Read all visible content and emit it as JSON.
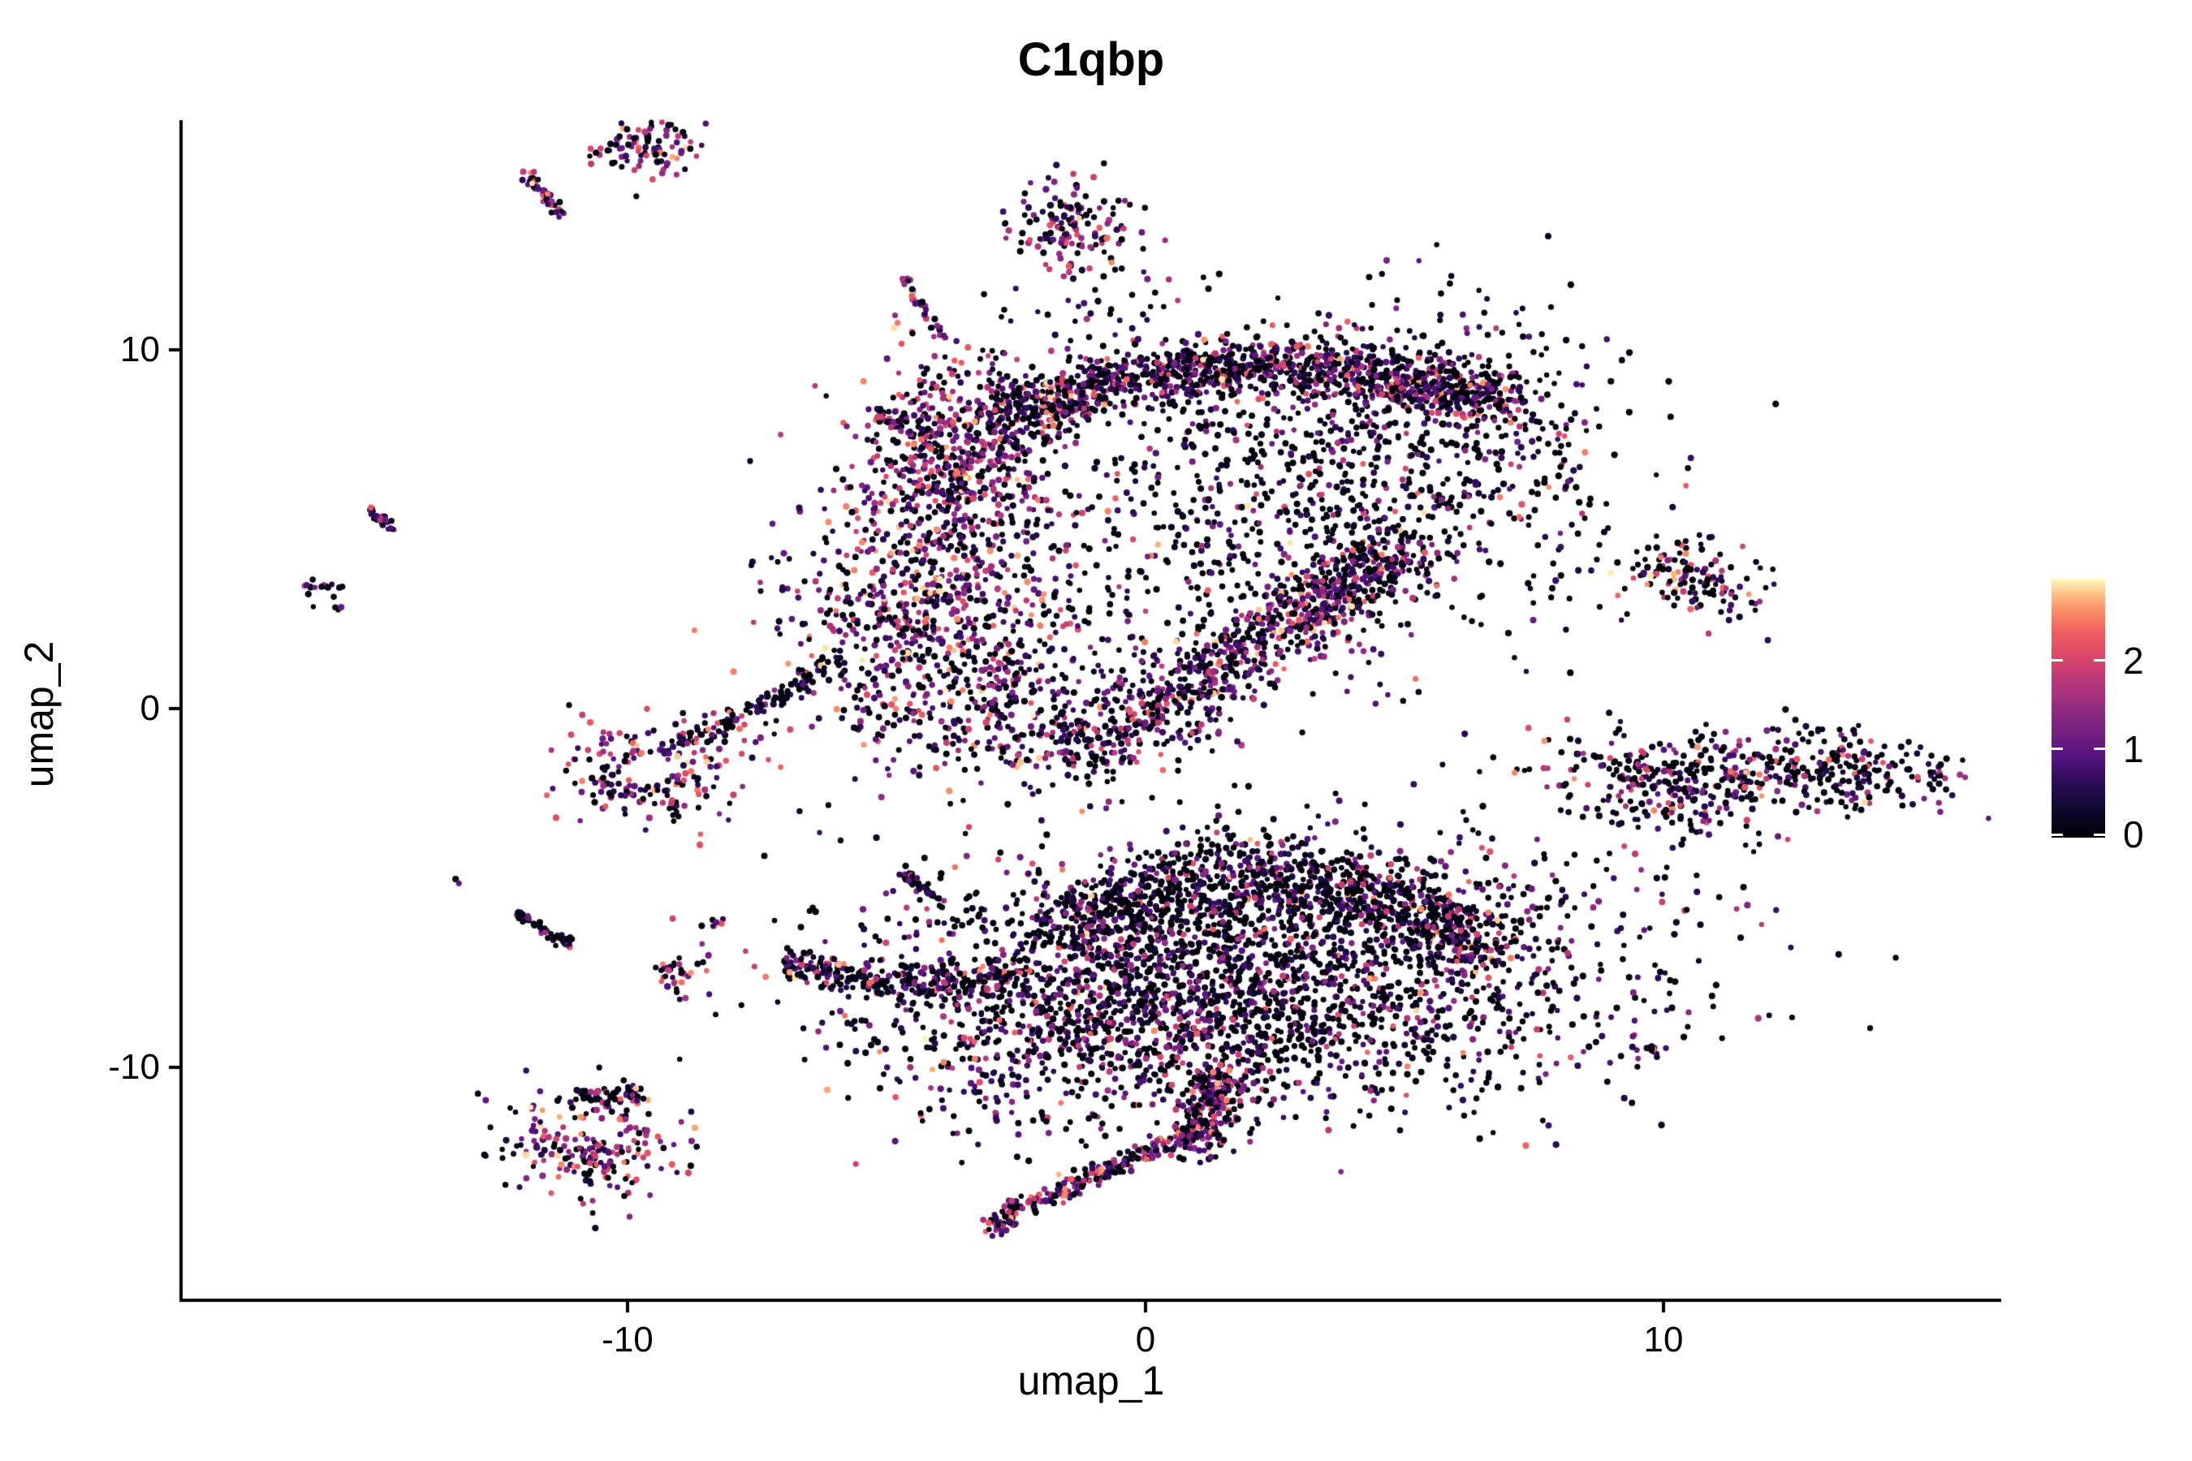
{
  "title": "C1qbp",
  "axes": {
    "x_label": "umap_1",
    "y_label": "umap_2",
    "x_ticks": [
      "-10",
      "0",
      "10"
    ],
    "y_ticks": [
      "10",
      "0",
      "-10"
    ]
  },
  "chart_data": {
    "type": "scatter",
    "title": "C1qbp",
    "xlabel": "umap_1",
    "ylabel": "umap_2",
    "xlim": [
      -18.62,
      16.52
    ],
    "ylim": [
      -16.49,
      16.4
    ],
    "x_tick_values": [
      -10,
      0,
      10
    ],
    "y_tick_values": [
      10,
      0,
      -10
    ],
    "grid": false,
    "legend_position": "right",
    "point_radius": 3.5,
    "seed": 20177,
    "colorbar": {
      "tick_values": [
        0,
        1,
        2
      ],
      "tick_labels": [
        "0",
        "1",
        "2"
      ],
      "max": 2.92,
      "colormap": "magma",
      "stops": [
        [
          0.0,
          "#000004"
        ],
        [
          0.1,
          "#0d0829"
        ],
        [
          0.2,
          "#280b53"
        ],
        [
          0.3,
          "#51127c"
        ],
        [
          0.4,
          "#721f81"
        ],
        [
          0.5,
          "#932b80"
        ],
        [
          0.6,
          "#b73779"
        ],
        [
          0.7,
          "#db476a"
        ],
        [
          0.8,
          "#f1605d"
        ],
        [
          0.9,
          "#fe9f6d"
        ],
        [
          0.95,
          "#fdc98c"
        ],
        [
          1.0,
          "#fcfdbf"
        ]
      ]
    },
    "value_bins": [
      [
        0.0,
        0.2
      ],
      [
        0.35,
        0.8
      ],
      [
        0.8,
        1.4
      ],
      [
        1.4,
        2.0
      ],
      [
        2.0,
        2.55
      ],
      [
        2.55,
        2.9
      ]
    ],
    "tones": {
      "default": [
        0.42,
        0.2,
        0.17,
        0.12,
        0.07,
        0.02
      ],
      "mid": [
        0.33,
        0.18,
        0.2,
        0.16,
        0.1,
        0.03
      ],
      "pink": [
        0.22,
        0.13,
        0.18,
        0.24,
        0.17,
        0.06
      ],
      "dark": [
        0.62,
        0.17,
        0.11,
        0.07,
        0.025,
        0.005
      ],
      "darkpink": [
        0.54,
        0.16,
        0.11,
        0.1,
        0.07,
        0.02
      ],
      "orange": [
        0.5,
        0.15,
        0.1,
        0.09,
        0.09,
        0.07
      ]
    },
    "clusters": [
      {
        "name": "top-blob",
        "type": "blob",
        "c": [
          -9.7,
          15.8
        ],
        "sx": 0.5,
        "sy": 0.58,
        "n": 110,
        "tone": "mid"
      },
      {
        "name": "top-streak",
        "type": "line",
        "pts": [
          [
            -12.0,
            15.1
          ],
          [
            -11.3,
            13.7
          ]
        ],
        "sw": 0.07,
        "n": 45,
        "tone": "pink"
      },
      {
        "name": "pink-dash",
        "type": "line",
        "pts": [
          [
            -4.7,
            12.0
          ],
          [
            -3.9,
            10.3
          ]
        ],
        "sw": 0.06,
        "n": 40,
        "tone": "pink"
      },
      {
        "name": "isolated-blob",
        "type": "blob",
        "c": [
          -1.4,
          13.4
        ],
        "sx": 0.62,
        "sy": 0.68,
        "n": 150,
        "tone": "mid"
      },
      {
        "name": "scatter-above-band",
        "type": "blob",
        "c": [
          -0.8,
          11.3
        ],
        "sx": 0.9,
        "sy": 0.8,
        "n": 28,
        "tone": "dark"
      },
      {
        "name": "wing-dash",
        "type": "line",
        "pts": [
          [
            -5.3,
            8.4
          ],
          [
            -4.7,
            7.8
          ]
        ],
        "sw": 0.09,
        "n": 26,
        "tone": "dark"
      },
      {
        "name": "wing-dots",
        "type": "blob",
        "c": [
          -4.4,
          7.9
        ],
        "sx": 0.4,
        "sy": 0.3,
        "n": 14,
        "tone": "dark"
      },
      {
        "name": "upper-left-knot",
        "type": "blob",
        "c": [
          -3.6,
          7.0
        ],
        "sx": 0.95,
        "sy": 1.5,
        "n": 620,
        "tone": "mid"
      },
      {
        "name": "upper-top-band",
        "type": "line",
        "pts": [
          [
            -2.9,
            8.0
          ],
          [
            -0.5,
            9.2
          ],
          [
            2.2,
            9.6
          ],
          [
            4.5,
            9.3
          ],
          [
            7.0,
            8.6
          ]
        ],
        "sw": 0.42,
        "n": 1250,
        "tone": "default"
      },
      {
        "name": "upper-right-mass",
        "type": "blob",
        "c": [
          4.6,
          6.7
        ],
        "sx": 2.3,
        "sy": 2.2,
        "n": 760,
        "tone": "dark"
      },
      {
        "name": "upper-interior",
        "type": "blob",
        "c": [
          1.2,
          5.2
        ],
        "sx": 2.6,
        "sy": 2.6,
        "n": 380,
        "tone": "dark"
      },
      {
        "name": "upper-lower-ridge",
        "type": "line",
        "pts": [
          [
            -1.7,
            -1.4
          ],
          [
            0.6,
            0.3
          ],
          [
            3.0,
            2.6
          ],
          [
            4.9,
            4.5
          ]
        ],
        "sw": 0.5,
        "n": 850,
        "tone": "default"
      },
      {
        "name": "face-knot",
        "type": "blob",
        "c": [
          -4.1,
          2.6
        ],
        "sx": 1.35,
        "sy": 1.7,
        "n": 620,
        "tone": "mid"
      },
      {
        "name": "chin",
        "type": "blob",
        "c": [
          -2.6,
          0.2
        ],
        "sx": 1.6,
        "sy": 1.4,
        "n": 300,
        "tone": "default"
      },
      {
        "name": "left-sparse",
        "type": "blob",
        "c": [
          -5.5,
          3.2
        ],
        "sx": 0.8,
        "sy": 1.2,
        "n": 40,
        "tone": "dark"
      },
      {
        "name": "right-sparse",
        "type": "blob",
        "c": [
          7.8,
          7.6
        ],
        "sx": 0.5,
        "sy": 0.6,
        "n": 25,
        "tone": "dark"
      },
      {
        "name": "chain-arm",
        "type": "line",
        "pts": [
          [
            -5.9,
            1.5
          ],
          [
            -7.1,
            0.3
          ],
          [
            -8.3,
            -0.6
          ],
          [
            -9.0,
            -1.0
          ]
        ],
        "sw": 0.16,
        "n": 130,
        "tone": "dark"
      },
      {
        "name": "ring",
        "type": "blob",
        "c": [
          -9.6,
          -1.8
        ],
        "sx": 0.85,
        "sy": 0.8,
        "hole": {
          "dx": 0,
          "dy": 0.05,
          "r": 0.42
        },
        "n": 210,
        "tone": "mid"
      },
      {
        "name": "mid-dash",
        "type": "line",
        "pts": [
          [
            -4.6,
            -4.6
          ],
          [
            -3.9,
            -5.5
          ]
        ],
        "sw": 0.06,
        "n": 30,
        "tone": "dark"
      },
      {
        "name": "farleft-dash",
        "type": "line",
        "pts": [
          [
            -15.0,
            5.6
          ],
          [
            -14.5,
            5.0
          ]
        ],
        "sw": 0.06,
        "n": 26,
        "tone": "mid"
      },
      {
        "name": "farleft-blob",
        "type": "blob",
        "c": [
          -15.9,
          3.3
        ],
        "sx": 0.22,
        "sy": 0.22,
        "n": 18,
        "tone": "dark"
      },
      {
        "name": "left-dash2",
        "type": "line",
        "pts": [
          [
            -12.1,
            -5.7
          ],
          [
            -11.1,
            -6.6
          ]
        ],
        "sw": 0.07,
        "n": 45,
        "tone": "dark"
      },
      {
        "name": "small-blob",
        "type": "blob",
        "c": [
          -9.1,
          -7.4
        ],
        "sx": 0.28,
        "sy": 0.33,
        "n": 30,
        "tone": "mid"
      },
      {
        "name": "tiny-pair",
        "type": "blob",
        "c": [
          -8.3,
          -6.0
        ],
        "sx": 0.12,
        "sy": 0.15,
        "n": 7,
        "tone": "pink"
      },
      {
        "name": "stray-pink",
        "type": "blob",
        "c": [
          -8.6,
          -6.9
        ],
        "sx": 0.5,
        "sy": 0.3,
        "n": 8,
        "tone": "pink"
      },
      {
        "name": "lone-pink",
        "type": "blob",
        "c": [
          -13.3,
          -4.8
        ],
        "sx": 0.07,
        "sy": 0.07,
        "n": 2,
        "tone": "pink"
      },
      {
        "name": "lone-dot",
        "type": "blob",
        "c": [
          -0.3,
          -3.9
        ],
        "sx": 0.05,
        "sy": 0.05,
        "n": 1,
        "tone": "dark"
      },
      {
        "name": "whale-body",
        "type": "blob",
        "c": [
          2.3,
          -7.0
        ],
        "sx": 3.4,
        "sy": 1.8,
        "n": 2100,
        "tone": "dark"
      },
      {
        "name": "whale-top-ridge",
        "type": "line",
        "pts": [
          [
            -1.5,
            -5.9
          ],
          [
            0.5,
            -4.9
          ],
          [
            2.5,
            -4.6
          ],
          [
            4.5,
            -5.2
          ],
          [
            6.0,
            -6.0
          ]
        ],
        "sw": 0.5,
        "n": 700,
        "tone": "dark"
      },
      {
        "name": "whale-right-tip",
        "type": "blob",
        "c": [
          6.2,
          -6.3
        ],
        "sx": 0.55,
        "sy": 0.5,
        "n": 130,
        "tone": "darkpink"
      },
      {
        "name": "whale-left-arm",
        "type": "line",
        "pts": [
          [
            -7.0,
            -7.1
          ],
          [
            -5.5,
            -7.5
          ],
          [
            -3.9,
            -7.7
          ],
          [
            -2.4,
            -7.4
          ]
        ],
        "sw": 0.22,
        "n": 280,
        "tone": "darkpink"
      },
      {
        "name": "whale-arm-fan",
        "type": "blob",
        "c": [
          -1.8,
          -8.8
        ],
        "sx": 1.9,
        "sy": 1.6,
        "n": 450,
        "tone": "default"
      },
      {
        "name": "whale-belly",
        "type": "blob",
        "c": [
          2.3,
          -9.3
        ],
        "sx": 2.9,
        "sy": 1.2,
        "n": 350,
        "tone": "dark"
      },
      {
        "name": "whale-neck",
        "type": "line",
        "pts": [
          [
            1.5,
            -10.2
          ],
          [
            1.2,
            -11.6
          ],
          [
            0.7,
            -12.2
          ]
        ],
        "sw": 0.3,
        "n": 240,
        "tone": "mid"
      },
      {
        "name": "whale-tail",
        "type": "line",
        "pts": [
          [
            0.5,
            -12.1
          ],
          [
            -0.8,
            -12.9
          ],
          [
            -1.7,
            -13.5
          ],
          [
            -2.4,
            -13.8
          ],
          [
            -3.0,
            -14.6
          ]
        ],
        "sw": 0.14,
        "n": 210,
        "tone": "mid"
      },
      {
        "name": "crescent-arc",
        "type": "line",
        "pts": [
          [
            -11.0,
            -10.8
          ],
          [
            -9.8,
            -10.7
          ]
        ],
        "sw": 0.12,
        "n": 45,
        "tone": "dark"
      },
      {
        "name": "crescent-main",
        "type": "blob",
        "c": [
          -10.6,
          -12.1
        ],
        "sx": 0.85,
        "sy": 0.75,
        "hole": {
          "dx": 0.1,
          "dy": 0.35,
          "r": 0.3
        },
        "n": 240,
        "tone": "mid"
      },
      {
        "name": "right-blob-top",
        "type": "blob",
        "c": [
          10.5,
          3.6
        ],
        "sx": 0.75,
        "sy": 0.5,
        "angle": -18,
        "n": 140,
        "tone": "orange"
      },
      {
        "name": "right-cluster-a",
        "type": "blob",
        "c": [
          9.9,
          -2.1
        ],
        "sx": 1.15,
        "sy": 0.75,
        "angle": -18,
        "n": 280,
        "tone": "darkpink"
      },
      {
        "name": "dot-trail",
        "type": "line",
        "pts": [
          [
            11.1,
            -1.9
          ],
          [
            11.9,
            -2.1
          ]
        ],
        "sw": 0.05,
        "n": 6,
        "tone": "dark"
      },
      {
        "name": "right-cluster-b",
        "type": "blob",
        "c": [
          13.2,
          -1.7
        ],
        "sx": 1.25,
        "sy": 0.55,
        "angle": -6,
        "n": 260,
        "tone": "darkpink"
      },
      {
        "name": "tiny-dash",
        "type": "line",
        "pts": [
          [
            9.7,
            -9.4
          ],
          [
            9.9,
            -9.7
          ]
        ],
        "sw": 0.04,
        "n": 7,
        "tone": "dark"
      }
    ]
  }
}
